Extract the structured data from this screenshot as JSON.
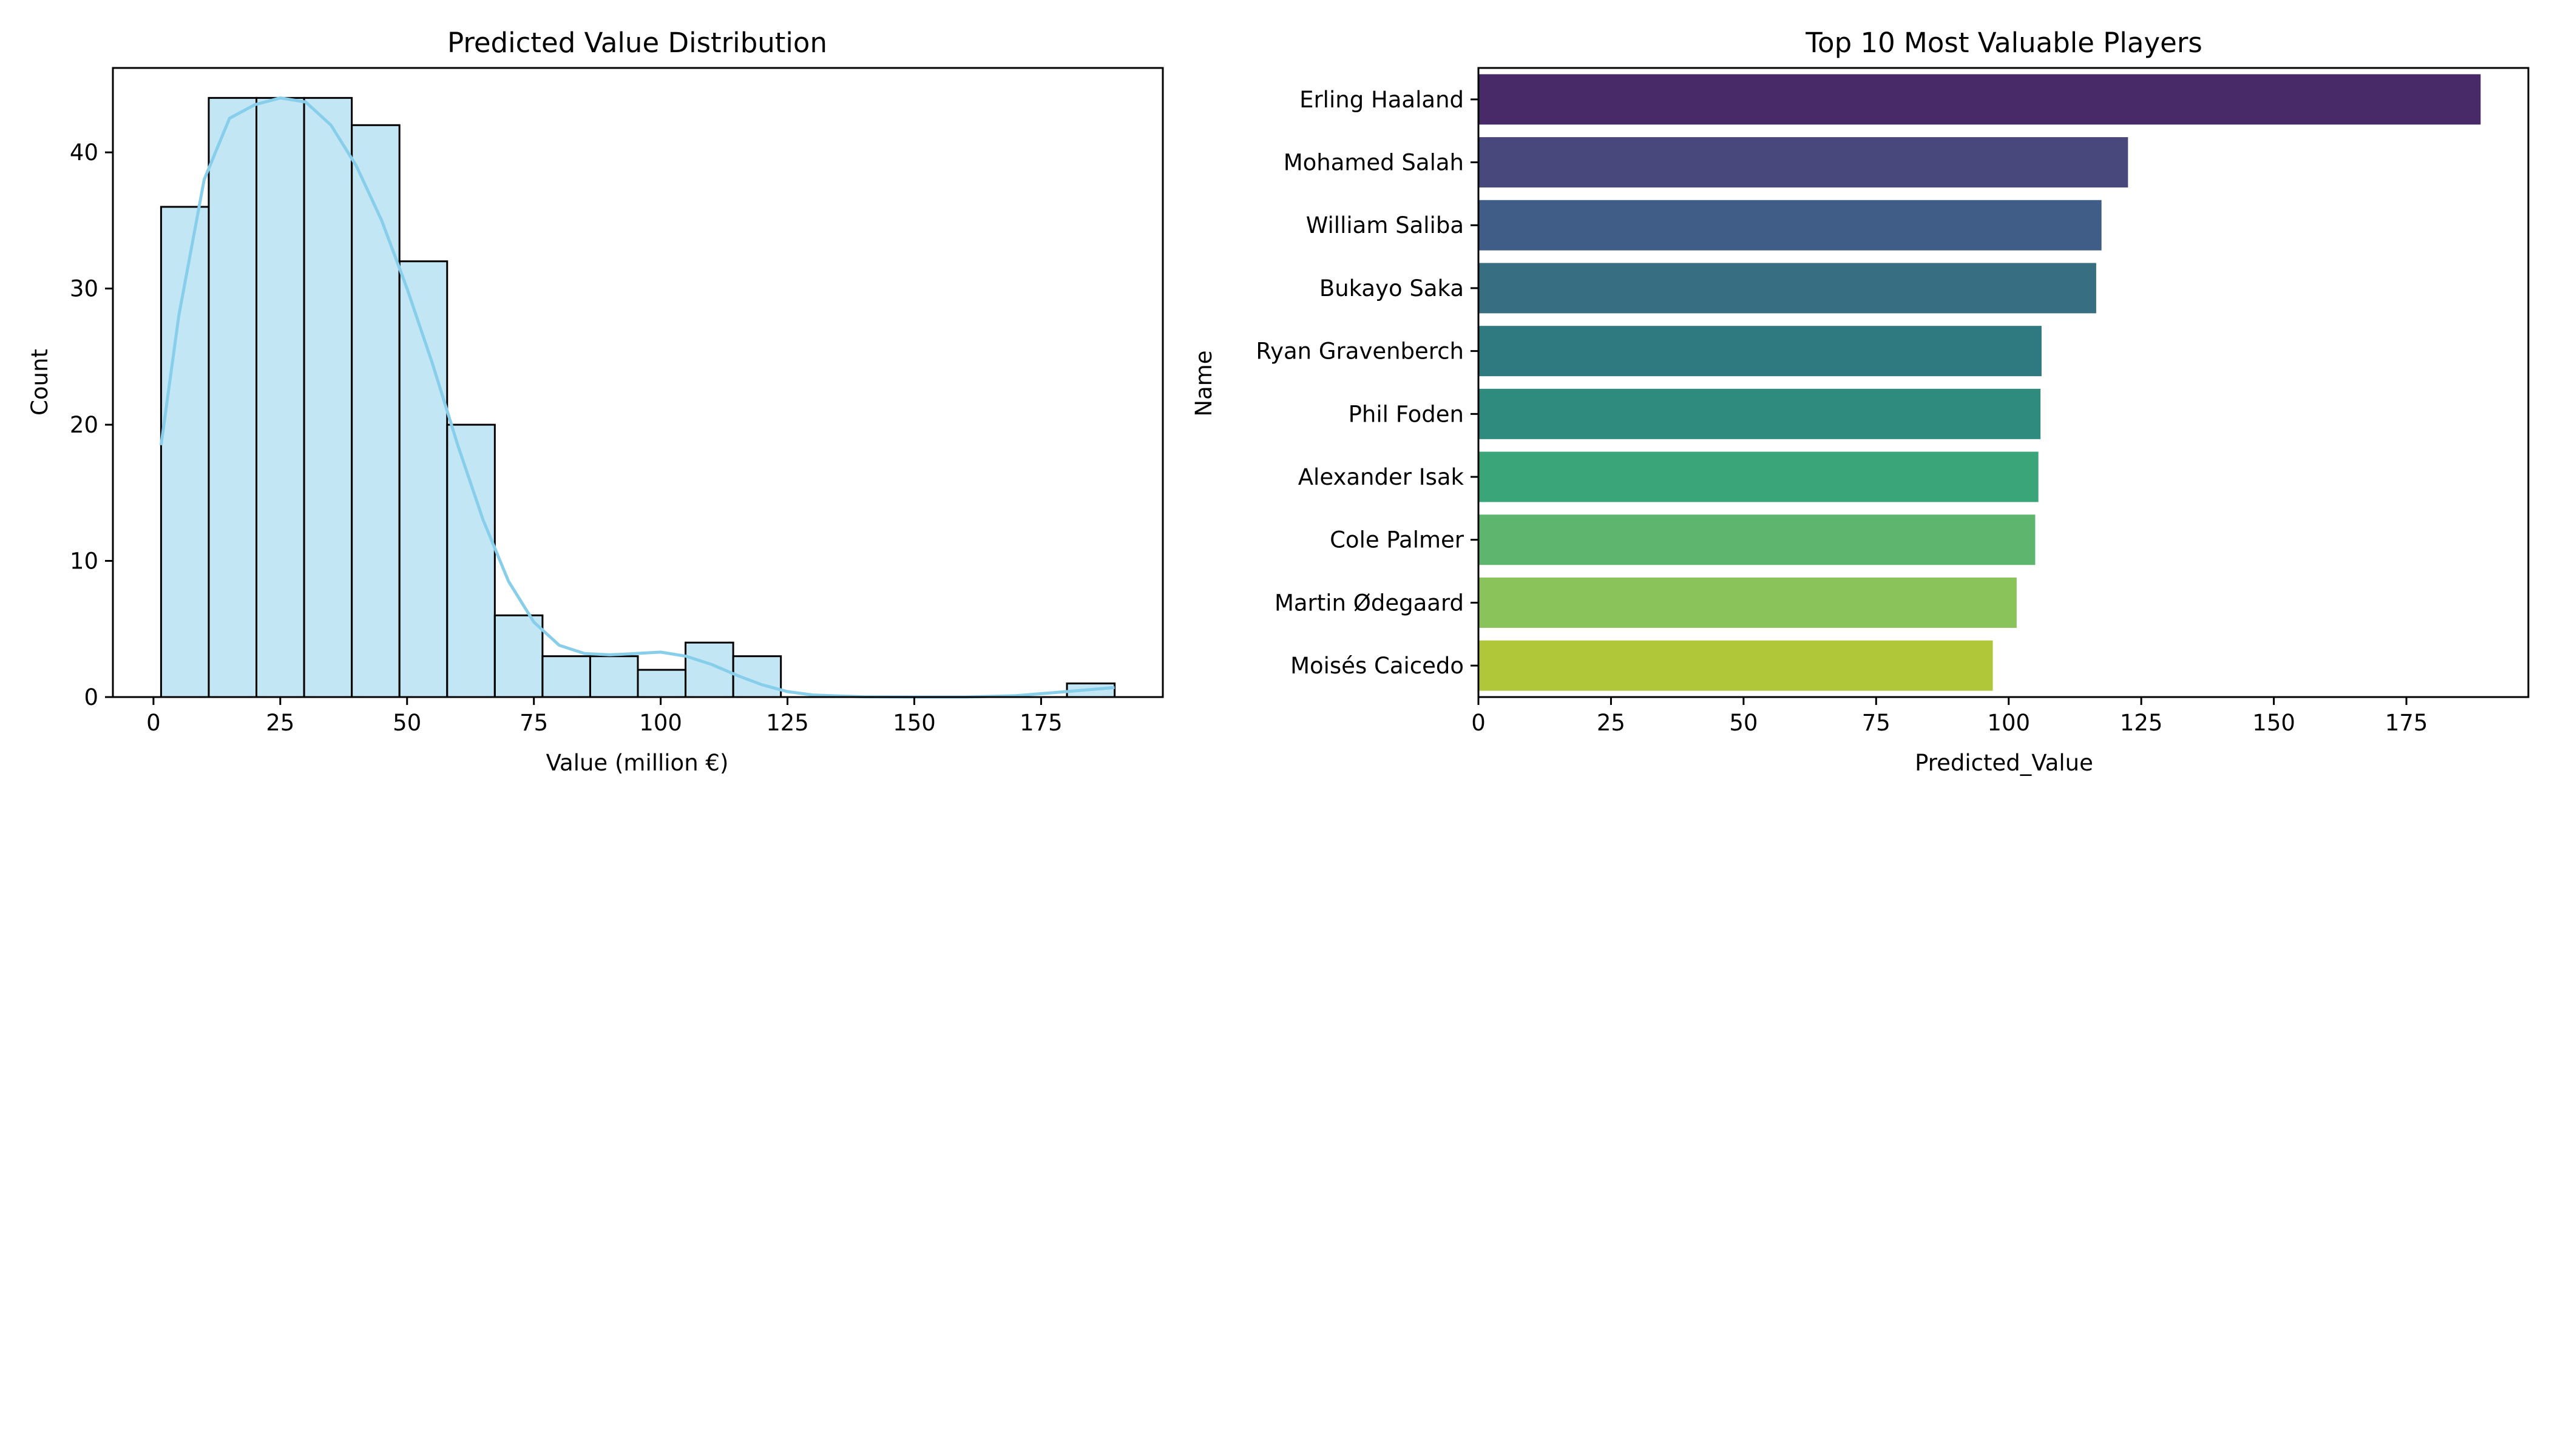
{
  "chart_data": [
    {
      "type": "bar",
      "subtype": "histogram",
      "title": "Predicted Value Distribution",
      "xlabel": "Value (million €)",
      "ylabel": "Count",
      "xlim": [
        -8,
        199
      ],
      "ylim": [
        0,
        46.2
      ],
      "xticks": [
        0,
        25,
        50,
        75,
        100,
        125,
        150,
        175
      ],
      "yticks": [
        0,
        10,
        20,
        30,
        40
      ],
      "bin_edges": [
        1.5,
        10.9,
        20.3,
        29.7,
        39.1,
        48.5,
        57.9,
        67.3,
        76.7,
        86.1,
        95.5,
        104.9,
        114.3,
        123.7,
        133.1,
        142.5,
        151.9,
        161.3,
        170.7,
        180.1,
        189.5
      ],
      "counts": [
        36,
        44,
        44,
        44,
        42,
        32,
        20,
        6,
        3,
        3,
        2,
        4,
        3,
        0,
        0,
        0,
        0,
        0,
        0,
        1
      ],
      "bar_color": "#87ceeb",
      "kde": {
        "color": "#87ceeb",
        "x": [
          1.5,
          5,
          10,
          15,
          20,
          25,
          30,
          35,
          40,
          45,
          50,
          55,
          60,
          65,
          70,
          75,
          80,
          85,
          90,
          95,
          100,
          105,
          110,
          115,
          120,
          125,
          130,
          140,
          150,
          160,
          170,
          180,
          189.5
        ],
        "y": [
          18.5,
          28,
          38,
          42.5,
          43.5,
          44,
          43.7,
          42,
          39,
          35,
          30,
          24.5,
          18.5,
          13,
          8.5,
          5.5,
          3.8,
          3.2,
          3.1,
          3.2,
          3.3,
          3.0,
          2.4,
          1.6,
          0.9,
          0.4,
          0.15,
          0.02,
          0,
          0,
          0.1,
          0.4,
          0.7
        ]
      },
      "grid": false
    },
    {
      "type": "bar",
      "orientation": "horizontal",
      "title": "Top 10 Most Valuable Players",
      "xlabel": "Predicted_Value",
      "ylabel": "Name",
      "xlim": [
        0,
        198
      ],
      "xticks": [
        0,
        25,
        50,
        75,
        100,
        125,
        150,
        175
      ],
      "categories": [
        "Erling Haaland",
        "Mohamed Salah",
        "William Saliba",
        "Bukayo Saka",
        "Ryan Gravenberch",
        "Phil Foden",
        "Alexander Isak",
        "Cole Palmer",
        "Martin Ødegaard",
        "Moisés Caicedo"
      ],
      "values": [
        189,
        122.5,
        117.5,
        116.5,
        106.2,
        106.0,
        105.6,
        105.0,
        101.5,
        97.0
      ],
      "colors": [
        "#482a68",
        "#48487d",
        "#405d87",
        "#376e82",
        "#2e7a80",
        "#2e8b7e",
        "#3aa579",
        "#5eb66e",
        "#8ac35a",
        "#b1c73a"
      ],
      "grid": false
    }
  ]
}
